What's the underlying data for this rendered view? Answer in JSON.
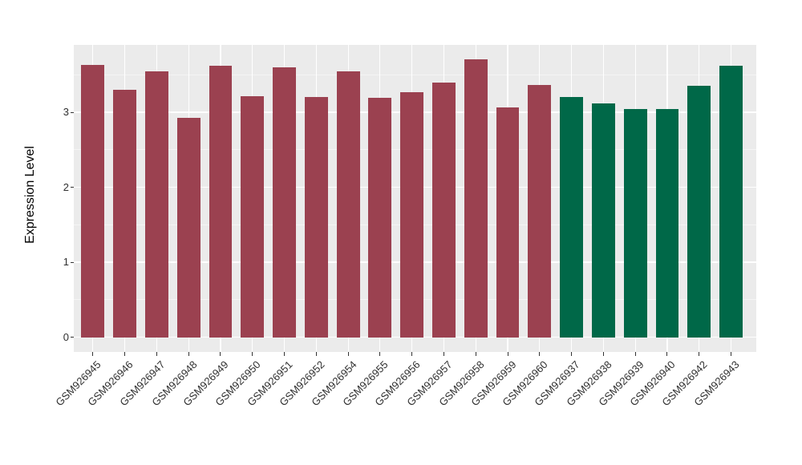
{
  "chart_data": {
    "type": "bar",
    "title": "",
    "xlabel": "",
    "ylabel": "Expression Level",
    "categories": [
      "GSM926945",
      "GSM926946",
      "GSM926947",
      "GSM926948",
      "GSM926949",
      "GSM926950",
      "GSM926951",
      "GSM926952",
      "GSM926954",
      "GSM926955",
      "GSM926956",
      "GSM926957",
      "GSM926958",
      "GSM926959",
      "GSM926960",
      "GSM926937",
      "GSM926938",
      "GSM926939",
      "GSM926940",
      "GSM926942",
      "GSM926943"
    ],
    "values": [
      3.63,
      3.3,
      3.55,
      2.93,
      3.62,
      3.22,
      3.6,
      3.2,
      3.55,
      3.19,
      3.27,
      3.4,
      3.71,
      3.06,
      3.36,
      3.2,
      3.12,
      3.04,
      3.04,
      3.35,
      3.62
    ],
    "groups": [
      "A",
      "A",
      "A",
      "A",
      "A",
      "A",
      "A",
      "A",
      "A",
      "A",
      "A",
      "A",
      "A",
      "A",
      "A",
      "B",
      "B",
      "B",
      "B",
      "B",
      "B"
    ],
    "group_colors": {
      "A": "#9B4150",
      "B": "#006848"
    },
    "yticks": [
      0,
      1,
      2,
      3
    ],
    "ytick_labels": [
      "0",
      "1",
      "2",
      "3"
    ],
    "ylim": [
      -0.2,
      3.9
    ],
    "grid": "on",
    "legend": "none",
    "colors": {
      "panel_background": "#EBEBEB",
      "major_gridline": "#FFFFFF",
      "minor_gridline": "#F5F5F5",
      "tick_mark": "#333333",
      "tick_text": "#303030",
      "axis_title_text": "#000000"
    }
  }
}
